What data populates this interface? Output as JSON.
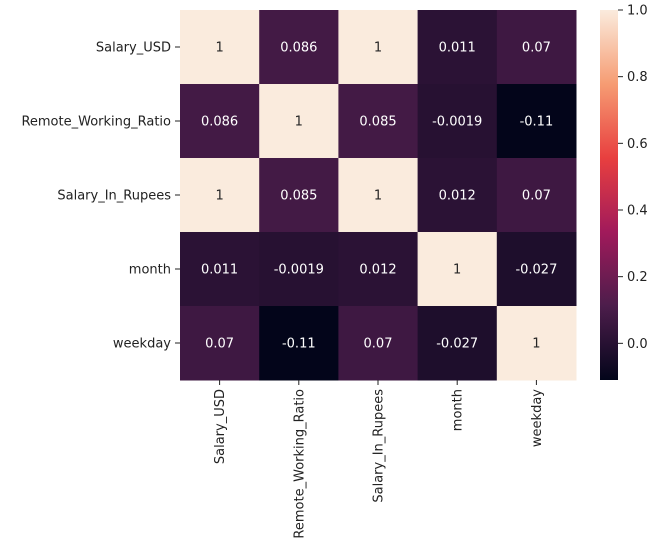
{
  "chart_data": {
    "type": "heatmap",
    "title": "",
    "xlabel": "",
    "ylabel": "",
    "rows": [
      "Salary_USD",
      "Remote_Working_Ratio",
      "Salary_In_Rupees",
      "month",
      "weekday"
    ],
    "columns": [
      "Salary_USD",
      "Remote_Working_Ratio",
      "Salary_In_Rupees",
      "month",
      "weekday"
    ],
    "values": [
      [
        1,
        0.086,
        1,
        0.011,
        0.07
      ],
      [
        0.086,
        1,
        0.085,
        -0.0019,
        -0.11
      ],
      [
        1,
        0.085,
        1,
        0.012,
        0.07
      ],
      [
        0.011,
        -0.0019,
        0.012,
        1,
        -0.027
      ],
      [
        0.07,
        -0.11,
        0.07,
        -0.027,
        1
      ]
    ],
    "labels": [
      [
        "1",
        "0.086",
        "1",
        "0.011",
        "0.07"
      ],
      [
        "0.086",
        "1",
        "0.085",
        "-0.0019",
        "-0.11"
      ],
      [
        "1",
        "0.085",
        "1",
        "0.012",
        "0.07"
      ],
      [
        "0.011",
        "-0.0019",
        "0.012",
        "1",
        "-0.027"
      ],
      [
        "0.07",
        "-0.11",
        "0.07",
        "-0.027",
        "1"
      ]
    ],
    "colorbar": {
      "vmin": -0.11,
      "vmax": 1,
      "ticks": [
        0.0,
        0.2,
        0.4,
        0.6,
        0.8,
        1.0
      ],
      "tick_labels": [
        "0.0",
        "0.2",
        "0.4",
        "0.6",
        "0.8",
        "1.0"
      ],
      "colormap": "rocket"
    },
    "colormap_stops": [
      "#03051a",
      "#4c1d4b",
      "#a11a5b",
      "#e83f3f",
      "#f69c73",
      "#faebdd"
    ]
  }
}
